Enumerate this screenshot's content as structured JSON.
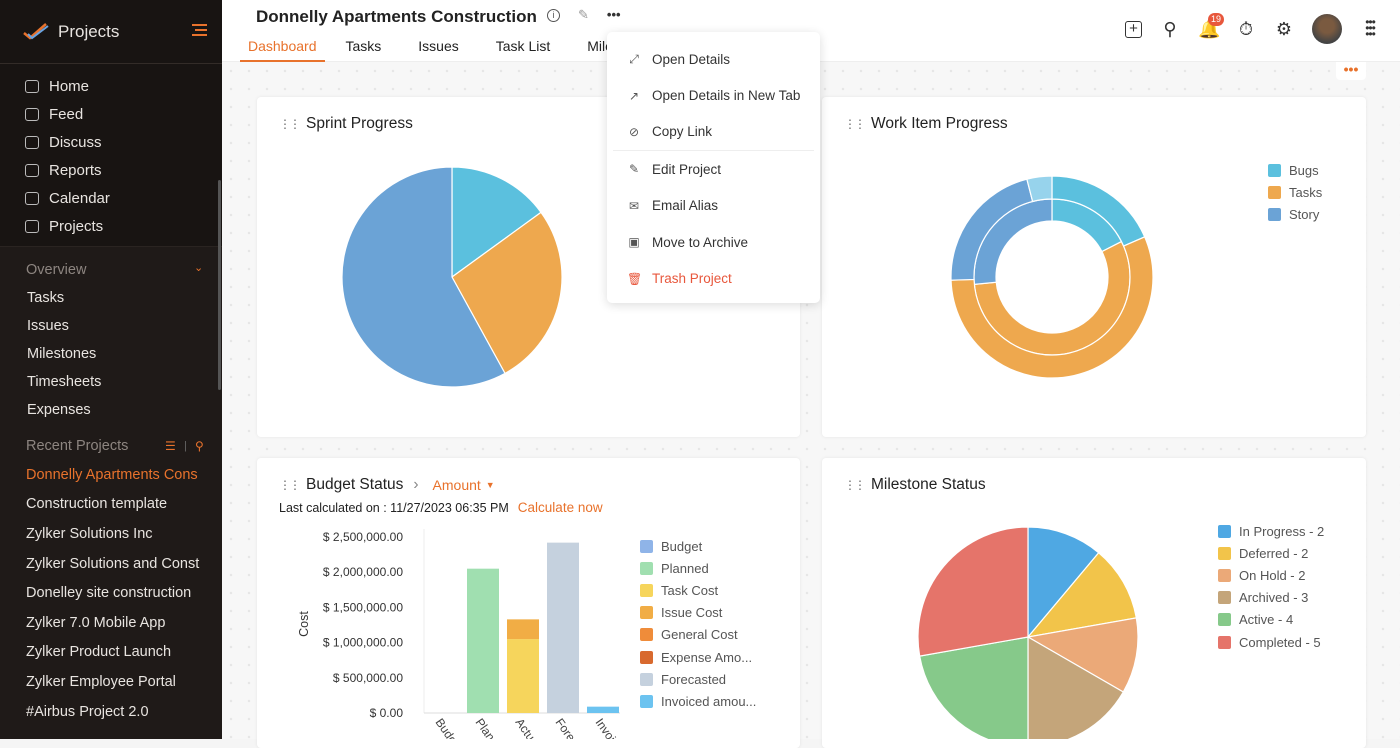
{
  "sidebar": {
    "app_title": "Projects",
    "nav": [
      {
        "label": "Home",
        "icon": "home-icon"
      },
      {
        "label": "Feed",
        "icon": "feed-icon"
      },
      {
        "label": "Discuss",
        "icon": "discuss-icon"
      },
      {
        "label": "Reports",
        "icon": "reports-icon"
      },
      {
        "label": "Calendar",
        "icon": "calendar-icon"
      },
      {
        "label": "Projects",
        "icon": "briefcase-icon"
      }
    ],
    "overview_label": "Overview",
    "overview_items": [
      "Tasks",
      "Issues",
      "Milestones",
      "Timesheets",
      "Expenses"
    ],
    "recent_label": "Recent Projects",
    "recent_projects": [
      "Donnelly Apartments Cons",
      "Construction template",
      "Zylker Solutions Inc",
      "Zylker Solutions and Const",
      "Donelley site construction",
      "Zylker 7.0 Mobile App",
      "Zylker Product Launch",
      "Zylker Employee Portal",
      "#Airbus Project 2.0"
    ]
  },
  "header": {
    "project_title": "Donnelly Apartments Construction",
    "tabs": [
      "Dashboard",
      "Tasks",
      "Issues",
      "Task List",
      "Milesto"
    ],
    "active_tab": "Dashboard",
    "notification_count": "19"
  },
  "menu": {
    "items": [
      {
        "label": "Open Details",
        "icon": "expand-icon"
      },
      {
        "label": "Open Details in New Tab",
        "icon": "external-link-icon"
      },
      {
        "label": "Copy Link",
        "icon": "link-icon"
      },
      {
        "label": "Edit Project",
        "icon": "pencil-icon"
      },
      {
        "label": "Email Alias",
        "icon": "mail-icon"
      },
      {
        "label": "Move to Archive",
        "icon": "archive-icon"
      },
      {
        "label": "Trash Project",
        "icon": "trash-icon"
      }
    ]
  },
  "widgets": {
    "sprint": {
      "title": "Sprint Progress"
    },
    "work": {
      "title": "Work Item Progress"
    },
    "budget": {
      "title": "Budget Status",
      "dropdown": "Amount",
      "last_calc": "Last calculated on : 11/27/2023 06:35 PM",
      "calc_now": "Calculate now"
    },
    "milestone": {
      "title": "Milestone Status"
    }
  },
  "colors": {
    "accent": "#e8722c"
  },
  "chart_data": [
    {
      "type": "pie",
      "title": "Sprint Progress",
      "slices": [
        {
          "value": 15,
          "color": "#5bc0de"
        },
        {
          "value": 27,
          "color": "#eea84e"
        },
        {
          "value": 58,
          "color": "#6ba3d6"
        }
      ]
    },
    {
      "type": "pie",
      "title": "Work Item Progress",
      "donut": true,
      "legend": [
        "Bugs",
        "Tasks",
        "Story"
      ],
      "legend_colors": [
        "#5bc0de",
        "#eea84e",
        "#6ba3d6"
      ],
      "inner": [
        {
          "name": "Bugs",
          "value": 17.5
        },
        {
          "name": "Tasks",
          "value": 56
        },
        {
          "name": "Story",
          "value": 26.5
        }
      ],
      "outer": [
        {
          "name": "Bugs",
          "value": 18.5
        },
        {
          "name": "Tasks",
          "value": 56
        },
        {
          "name": "Story",
          "value": 21.5
        },
        {
          "name": "",
          "value": 4,
          "color": "#97d3ec"
        }
      ]
    },
    {
      "type": "bar",
      "title": "Budget Status",
      "ylabel": "Cost",
      "ylim": [
        0,
        2500000
      ],
      "yticks": [
        "$ 0.00",
        "$ 500,000.00",
        "$ 1,000,000.00",
        "$ 1,500,000.00",
        "$ 2,000,000.00",
        "$ 2,500,000.00"
      ],
      "categories": [
        "Budg",
        "Plan",
        "Actu",
        "Fore",
        "Invoi"
      ],
      "bars": [
        {
          "category": "Budg",
          "segments": []
        },
        {
          "category": "Plan",
          "segments": [
            {
              "series": "Planned",
              "value": 2050000
            }
          ]
        },
        {
          "category": "Actu",
          "segments": [
            {
              "series": "Task Cost",
              "value": 1050000
            },
            {
              "series": "Issue Cost",
              "value": 280000
            }
          ]
        },
        {
          "category": "Fore",
          "segments": [
            {
              "series": "Forecasted",
              "value": 2420000
            }
          ]
        },
        {
          "category": "Invoi",
          "segments": [
            {
              "series": "Invoiced amou...",
              "value": 90000
            }
          ]
        }
      ],
      "legend": [
        {
          "name": "Budget",
          "color": "#8fb4e8"
        },
        {
          "name": "Planned",
          "color": "#a0dfb0"
        },
        {
          "name": "Task Cost",
          "color": "#f6d55c"
        },
        {
          "name": "Issue Cost",
          "color": "#f1ad45"
        },
        {
          "name": "General Cost",
          "color": "#ef8c3a"
        },
        {
          "name": "Expense Amo...",
          "color": "#d8692e"
        },
        {
          "name": "Forecasted",
          "color": "#c5d1de"
        },
        {
          "name": "Invoiced amou...",
          "color": "#6cc3f0"
        }
      ]
    },
    {
      "type": "pie",
      "title": "Milestone Status",
      "slices": [
        {
          "name": "In Progress - 2",
          "value": 2,
          "color": "#4fa8e3"
        },
        {
          "name": "Deferred - 2",
          "value": 2,
          "color": "#f2c44a"
        },
        {
          "name": "On Hold - 2",
          "value": 2,
          "color": "#eba978"
        },
        {
          "name": "Archived - 3",
          "value": 3,
          "color": "#c4a57a"
        },
        {
          "name": "Active - 4",
          "value": 4,
          "color": "#86c98a"
        },
        {
          "name": "Completed - 5",
          "value": 5,
          "color": "#e5746a"
        }
      ]
    }
  ]
}
